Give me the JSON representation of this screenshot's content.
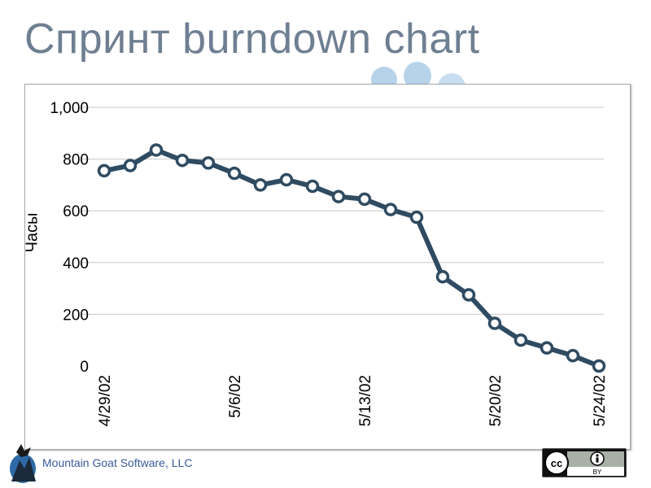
{
  "slide": {
    "title": "Спринт burndown chart",
    "footer": "Mountain Goat Software, LLC"
  },
  "license": {
    "cc_text": "cc",
    "by_text": "BY"
  },
  "colors": {
    "line": "#2f4b62",
    "grid": "#c8c8c8",
    "title": "#6f7f92"
  },
  "chart_data": {
    "type": "line",
    "title": "",
    "xlabel": "",
    "ylabel": "Часы",
    "ylim": [
      0,
      1000
    ],
    "yticks": [
      "0",
      "200",
      "400",
      "600",
      "800",
      "1,000"
    ],
    "xticks": [
      {
        "index": 0,
        "label": "4/29/02"
      },
      {
        "index": 5,
        "label": "5/6/02"
      },
      {
        "index": 10,
        "label": "5/13/02"
      },
      {
        "index": 15,
        "label": "5/20/02"
      },
      {
        "index": 19,
        "label": "5/24/02"
      }
    ],
    "grid": true,
    "x": [
      "4/29/02",
      "4/30/02",
      "5/1/02",
      "5/2/02",
      "5/3/02",
      "5/6/02",
      "5/7/02",
      "5/8/02",
      "5/9/02",
      "5/10/02",
      "5/13/02",
      "5/14/02",
      "5/15/02",
      "5/16/02",
      "5/17/02",
      "5/20/02",
      "5/21/02",
      "5/22/02",
      "5/23/02",
      "5/24/02"
    ],
    "values": [
      755,
      775,
      835,
      795,
      785,
      745,
      700,
      720,
      695,
      655,
      645,
      605,
      575,
      345,
      275,
      165,
      100,
      70,
      40,
      0
    ]
  }
}
